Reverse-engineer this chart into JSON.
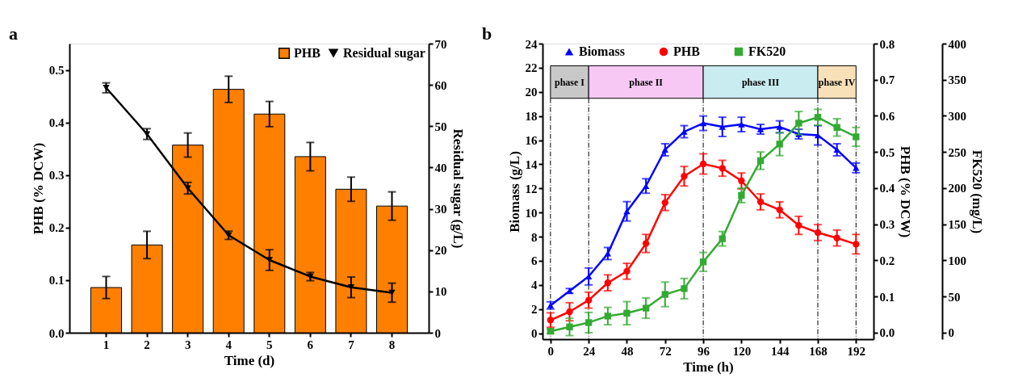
{
  "chart_data": [
    {
      "type": "bar",
      "xlabel": "Time (d)",
      "ylabel": "PHB (% DCW)",
      "y2label": "Residual sugar (g/L)",
      "annotations": [
        "a"
      ],
      "categories": [
        "1",
        "2",
        "3",
        "4",
        "5",
        "6",
        "7",
        "8"
      ],
      "series": [
        {
          "name": "PHB",
          "color": "#ff8000",
          "values": [
            0.086,
            0.167,
            0.357,
            0.463,
            0.416,
            0.335,
            0.273,
            0.241
          ],
          "errors": [
            0.021,
            0.026,
            0.023,
            0.025,
            0.024,
            0.027,
            0.023,
            0.027
          ]
        },
        {
          "name": "Residual sugar",
          "type": "line",
          "axis": "y2",
          "color": "#000000",
          "marker": "triangle-down",
          "values": [
            59.3,
            48.1,
            35.0,
            23.6,
            17.6,
            13.6,
            11.0,
            9.7
          ],
          "errors": [
            1.2,
            1.3,
            1.4,
            1.0,
            2.5,
            1.0,
            2.5,
            2.3
          ]
        }
      ],
      "ylim": [
        0,
        0.55
      ],
      "yticks": [
        {
          "value": 0,
          "label": "0.0"
        },
        0.1,
        0.2,
        0.3,
        0.4,
        0.5
      ],
      "y2lim": [
        0,
        70
      ],
      "y2ticks": [
        0,
        10,
        20,
        30,
        40,
        50,
        60,
        70
      ],
      "legend": "top right",
      "grid": false
    },
    {
      "type": "line",
      "xlabel": "Time (h)",
      "ylabel": "Biomass (g/L)",
      "y2label": "PHB (% DCW)",
      "y3label": "FK520 (mg/L)",
      "annotations": [
        "b"
      ],
      "x": [
        0,
        12,
        24,
        36,
        48,
        60,
        72,
        84,
        96,
        108,
        120,
        132,
        144,
        156,
        168,
        180,
        192
      ],
      "series": [
        {
          "name": "Biomass",
          "color": "#0000ff",
          "marker": "triangle",
          "values": [
            2.3,
            3.5,
            4.7,
            6.6,
            10.1,
            12.2,
            15.2,
            16.7,
            17.4,
            17.1,
            17.3,
            16.9,
            17.1,
            16.5,
            16.4,
            15.2,
            13.7
          ],
          "errors": [
            0.3,
            0.2,
            0.7,
            0.5,
            0.8,
            0.6,
            0.5,
            0.5,
            0.6,
            0.8,
            0.6,
            0.4,
            0.5,
            0.4,
            0.8,
            0.5,
            0.4
          ]
        },
        {
          "name": "PHB",
          "color": "#ff0000",
          "marker": "circle",
          "axis": "y2",
          "values": [
            0.035,
            0.058,
            0.09,
            0.138,
            0.17,
            0.247,
            0.36,
            0.433,
            0.467,
            0.455,
            0.42,
            0.362,
            0.34,
            0.297,
            0.277,
            0.262,
            0.245
          ],
          "errors": [
            0.02,
            0.025,
            0.022,
            0.022,
            0.022,
            0.025,
            0.022,
            0.027,
            0.028,
            0.022,
            0.022,
            0.022,
            0.022,
            0.025,
            0.022,
            0.022,
            0.027
          ]
        },
        {
          "name": "FK520",
          "color": "#33aa33",
          "marker": "square",
          "axis": "y3",
          "values": [
            2,
            8,
            14,
            23,
            27,
            34,
            53,
            61,
            98,
            130,
            190,
            238,
            261,
            290,
            298,
            284,
            271
          ],
          "errors": [
            3,
            12,
            14,
            12,
            16,
            14,
            17,
            14,
            13,
            10,
            10,
            12,
            16,
            16,
            11,
            12,
            13
          ]
        }
      ],
      "xlim": [
        -5,
        203
      ],
      "xticks": [
        0,
        24,
        48,
        72,
        96,
        120,
        144,
        168,
        192
      ],
      "ylim": [
        -0.5,
        24
      ],
      "yticks": [
        0,
        2,
        4,
        6,
        8,
        10,
        12,
        14,
        16,
        18,
        20,
        22,
        24
      ],
      "y2lim": [
        -0.018,
        0.8
      ],
      "y2ticks": [
        {
          "value": 0,
          "label": "0.0"
        },
        0.1,
        0.2,
        0.3,
        0.4,
        0.5,
        0.6,
        0.7,
        0.8
      ],
      "y3lim": [
        -9,
        400
      ],
      "y3ticks": [
        0,
        50,
        100,
        150,
        200,
        250,
        300,
        350,
        400
      ],
      "bands": [
        {
          "axis": "x",
          "from": 0,
          "to": 24,
          "label": "phase I",
          "color": "#c8c8c8"
        },
        {
          "axis": "x",
          "from": 24,
          "to": 96,
          "label": "phase II",
          "color": "#f8c8f4"
        },
        {
          "axis": "x",
          "from": 96,
          "to": 168,
          "label": "phase III",
          "color": "#c8ecf0"
        },
        {
          "axis": "x",
          "from": 168,
          "to": 192,
          "label": "phase IV",
          "color": "#f8e0b8"
        }
      ],
      "ref_lines": [
        {
          "axis": "x",
          "value": 0,
          "color": "#000000",
          "line_style": "dashed"
        },
        {
          "axis": "x",
          "value": 24,
          "color": "#000000",
          "line_style": "dashed"
        },
        {
          "axis": "x",
          "value": 96,
          "color": "#000000",
          "line_style": "dashed"
        },
        {
          "axis": "x",
          "value": 168,
          "color": "#000000",
          "line_style": "dashed"
        },
        {
          "axis": "x",
          "value": 192,
          "color": "#000000",
          "line_style": "dashed"
        }
      ],
      "legend": "top",
      "grid": false
    }
  ]
}
